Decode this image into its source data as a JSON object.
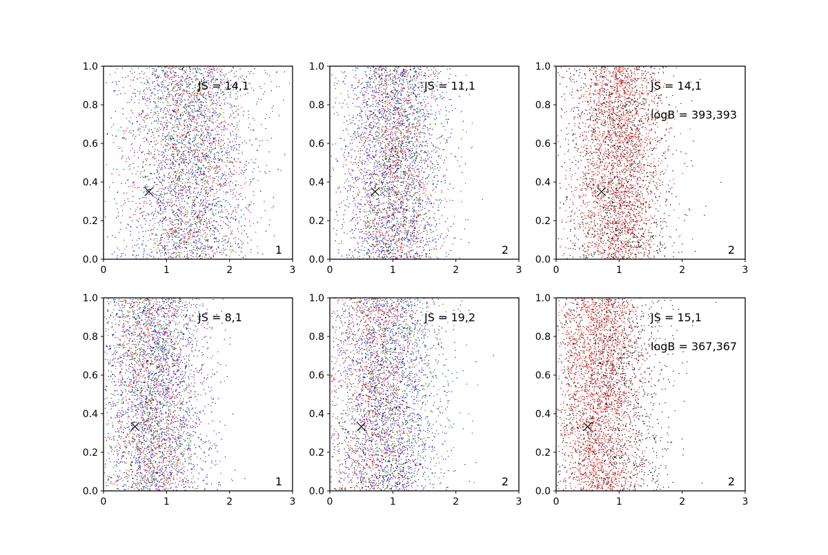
{
  "chart_data": [
    {
      "type": "scatter",
      "panel": [
        0,
        0
      ],
      "xlim": [
        0,
        3
      ],
      "ylim": [
        0,
        1
      ],
      "xticks": [
        "0",
        "1",
        "2",
        "3"
      ],
      "yticks": [
        "0.0",
        "0.2",
        "0.4",
        "0.6",
        "0.8",
        "1.0"
      ],
      "grid": false,
      "series": [
        {
          "color": "#0000ff",
          "x_center": 1.35,
          "x_spread": 0.55,
          "count": 1300
        },
        {
          "color": "#ff0000",
          "x_center": 1.35,
          "x_spread": 0.5,
          "count": 1000
        },
        {
          "color": "#008000",
          "x_center": 1.35,
          "x_spread": 0.45,
          "count": 900
        },
        {
          "color": "#000000",
          "x_center": 1.35,
          "x_spread": 0.45,
          "count": 500
        }
      ],
      "marker": {
        "x": 0.72,
        "y": 0.35,
        "symbol": "x"
      },
      "annotations": {
        "js": "JS = 14,1",
        "logb": ""
      },
      "corner_label": "1"
    },
    {
      "type": "scatter",
      "panel": [
        0,
        1
      ],
      "xlim": [
        0,
        3
      ],
      "ylim": [
        0,
        1
      ],
      "xticks": [
        "0",
        "1",
        "2",
        "3"
      ],
      "yticks": [
        "0.0",
        "0.2",
        "0.4",
        "0.6",
        "0.8",
        "1.0"
      ],
      "grid": false,
      "series": [
        {
          "color": "#0000ff",
          "x_center": 1.05,
          "x_spread": 0.42,
          "count": 1300
        },
        {
          "color": "#ff0000",
          "x_center": 1.0,
          "x_spread": 0.35,
          "count": 1000
        },
        {
          "color": "#008000",
          "x_center": 1.1,
          "x_spread": 0.42,
          "count": 900
        },
        {
          "color": "#000000",
          "x_center": 1.0,
          "x_spread": 0.35,
          "count": 500
        }
      ],
      "marker": {
        "x": 0.72,
        "y": 0.35,
        "symbol": "x"
      },
      "annotations": {
        "js": "JS = 11,1",
        "logb": ""
      },
      "corner_label": "2"
    },
    {
      "type": "scatter",
      "panel": [
        0,
        2
      ],
      "xlim": [
        0,
        3
      ],
      "ylim": [
        0,
        1
      ],
      "xticks": [
        "0",
        "1",
        "2",
        "3"
      ],
      "yticks": [
        "0.0",
        "0.2",
        "0.4",
        "0.6",
        "0.8",
        "1.0"
      ],
      "grid": false,
      "series": [
        {
          "color": "#000000",
          "x_center": 1.0,
          "x_spread": 0.42,
          "count": 1700
        },
        {
          "color": "#ff0000",
          "x_center": 0.98,
          "x_spread": 0.35,
          "count": 1900
        }
      ],
      "marker": {
        "x": 0.72,
        "y": 0.35,
        "symbol": "x"
      },
      "annotations": {
        "js": "JS = 14,1",
        "logb": "logB = 393,393"
      },
      "corner_label": "2"
    },
    {
      "type": "scatter",
      "panel": [
        1,
        0
      ],
      "xlim": [
        0,
        3
      ],
      "ylim": [
        0,
        1
      ],
      "xticks": [
        "0",
        "1",
        "2",
        "3"
      ],
      "yticks": [
        "0.0",
        "0.2",
        "0.4",
        "0.6",
        "0.8",
        "1.0"
      ],
      "grid": false,
      "series": [
        {
          "color": "#0000ff",
          "x_center": 0.85,
          "x_spread": 0.45,
          "count": 1300
        },
        {
          "color": "#ff0000",
          "x_center": 0.8,
          "x_spread": 0.38,
          "count": 1000
        },
        {
          "color": "#008000",
          "x_center": 0.82,
          "x_spread": 0.38,
          "count": 900
        },
        {
          "color": "#000000",
          "x_center": 0.8,
          "x_spread": 0.38,
          "count": 500
        }
      ],
      "marker": {
        "x": 0.5,
        "y": 0.333,
        "symbol": "x"
      },
      "annotations": {
        "js": "JS = 8,1",
        "logb": ""
      },
      "corner_label": "1"
    },
    {
      "type": "scatter",
      "panel": [
        1,
        1
      ],
      "xlim": [
        0,
        3
      ],
      "ylim": [
        0,
        1
      ],
      "xticks": [
        "0",
        "1",
        "2",
        "3"
      ],
      "yticks": [
        "0.0",
        "0.2",
        "0.4",
        "0.6",
        "0.8",
        "1.0"
      ],
      "grid": false,
      "series": [
        {
          "color": "#0000ff",
          "x_center": 0.95,
          "x_spread": 0.45,
          "count": 1300
        },
        {
          "color": "#ff0000",
          "x_center": 0.75,
          "x_spread": 0.35,
          "count": 1000
        },
        {
          "color": "#008000",
          "x_center": 0.95,
          "x_spread": 0.48,
          "count": 900
        },
        {
          "color": "#000000",
          "x_center": 0.8,
          "x_spread": 0.35,
          "count": 500
        }
      ],
      "marker": {
        "x": 0.5,
        "y": 0.333,
        "symbol": "x"
      },
      "annotations": {
        "js": "JS = 19,2",
        "logb": ""
      },
      "corner_label": "2"
    },
    {
      "type": "scatter",
      "panel": [
        1,
        2
      ],
      "xlim": [
        0,
        3
      ],
      "ylim": [
        0,
        1
      ],
      "xticks": [
        "0",
        "1",
        "2",
        "3"
      ],
      "yticks": [
        "0.0",
        "0.2",
        "0.4",
        "0.6",
        "0.8",
        "1.0"
      ],
      "grid": false,
      "series": [
        {
          "color": "#000000",
          "x_center": 0.85,
          "x_spread": 0.45,
          "count": 1700
        },
        {
          "color": "#ff0000",
          "x_center": 0.7,
          "x_spread": 0.32,
          "count": 1900
        }
      ],
      "marker": {
        "x": 0.5,
        "y": 0.333,
        "symbol": "x"
      },
      "annotations": {
        "js": "JS = 15,1",
        "logb": "logB = 367,367"
      },
      "corner_label": "2"
    }
  ]
}
